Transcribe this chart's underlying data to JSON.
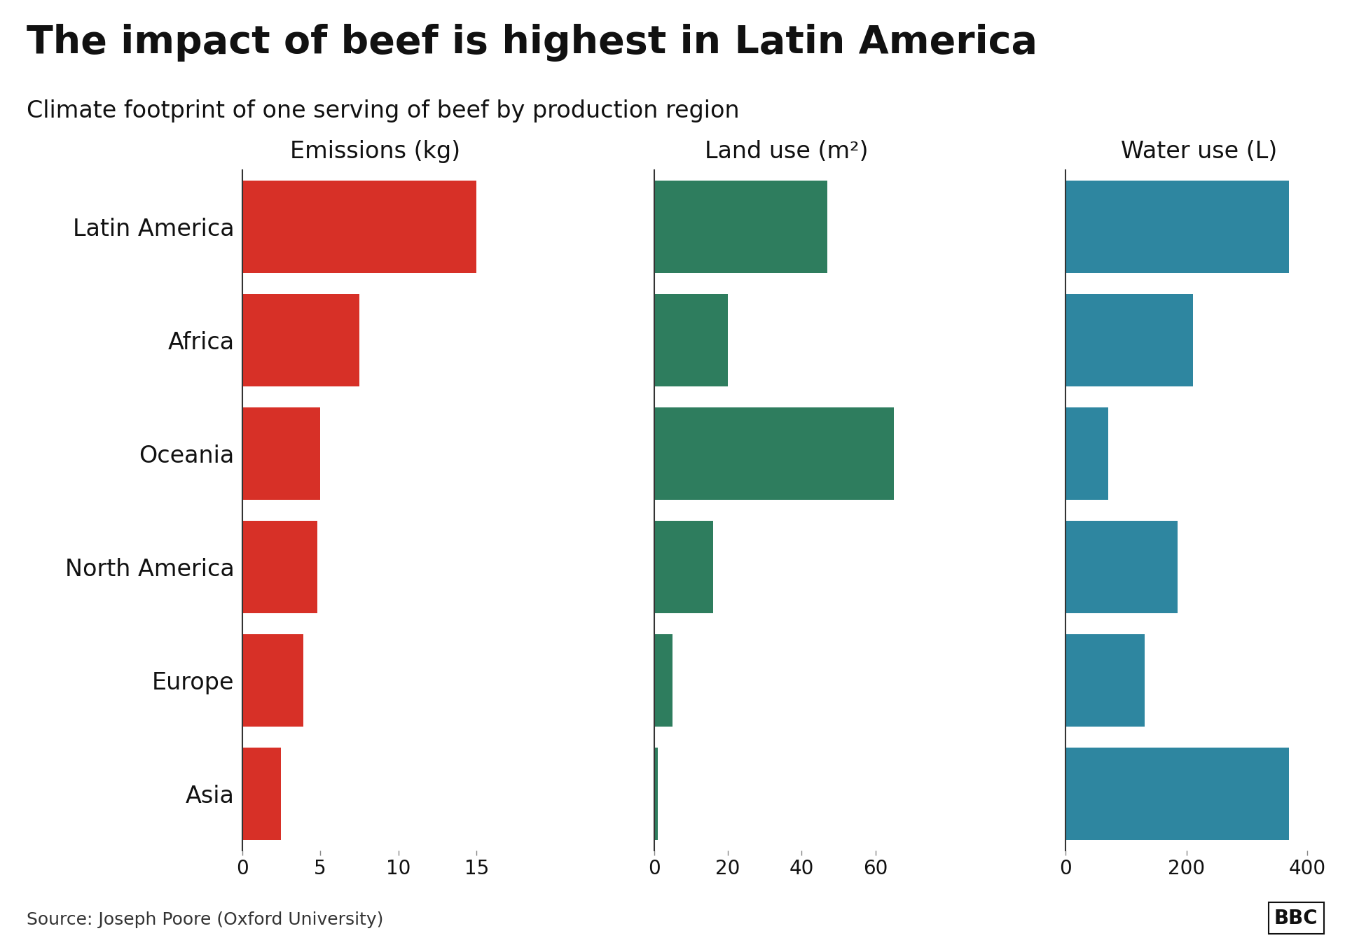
{
  "title": "The impact of beef is highest in Latin America",
  "subtitle": "Climate footprint of one serving of beef by production region",
  "regions": [
    "Latin America",
    "Africa",
    "Oceania",
    "North America",
    "Europe",
    "Asia"
  ],
  "emissions": [
    15.0,
    7.5,
    5.0,
    4.8,
    3.9,
    2.5
  ],
  "land_use": [
    47.0,
    20.0,
    65.0,
    16.0,
    5.0,
    1.0
  ],
  "water_use": [
    370.0,
    210.0,
    70.0,
    185.0,
    130.0,
    370.0
  ],
  "emissions_label": "Emissions (kg)",
  "land_label": "Land use (m²)",
  "water_label": "Water use (L)",
  "emissions_color": "#d73027",
  "land_color": "#2e7d5e",
  "water_color": "#2e86a0",
  "emissions_xlim": [
    0,
    17
  ],
  "land_xlim": [
    0,
    72
  ],
  "water_xlim": [
    0,
    440
  ],
  "emissions_xticks": [
    0,
    5,
    10,
    15
  ],
  "land_xticks": [
    0,
    20,
    40,
    60
  ],
  "water_xticks": [
    0,
    200,
    400
  ],
  "source_text": "Source: Joseph Poore (Oxford University)",
  "bbc_text": "BBC",
  "background_color": "#ffffff",
  "title_fontsize": 40,
  "subtitle_fontsize": 24,
  "axis_label_fontsize": 24,
  "tick_fontsize": 20,
  "region_fontsize": 24,
  "source_fontsize": 18
}
